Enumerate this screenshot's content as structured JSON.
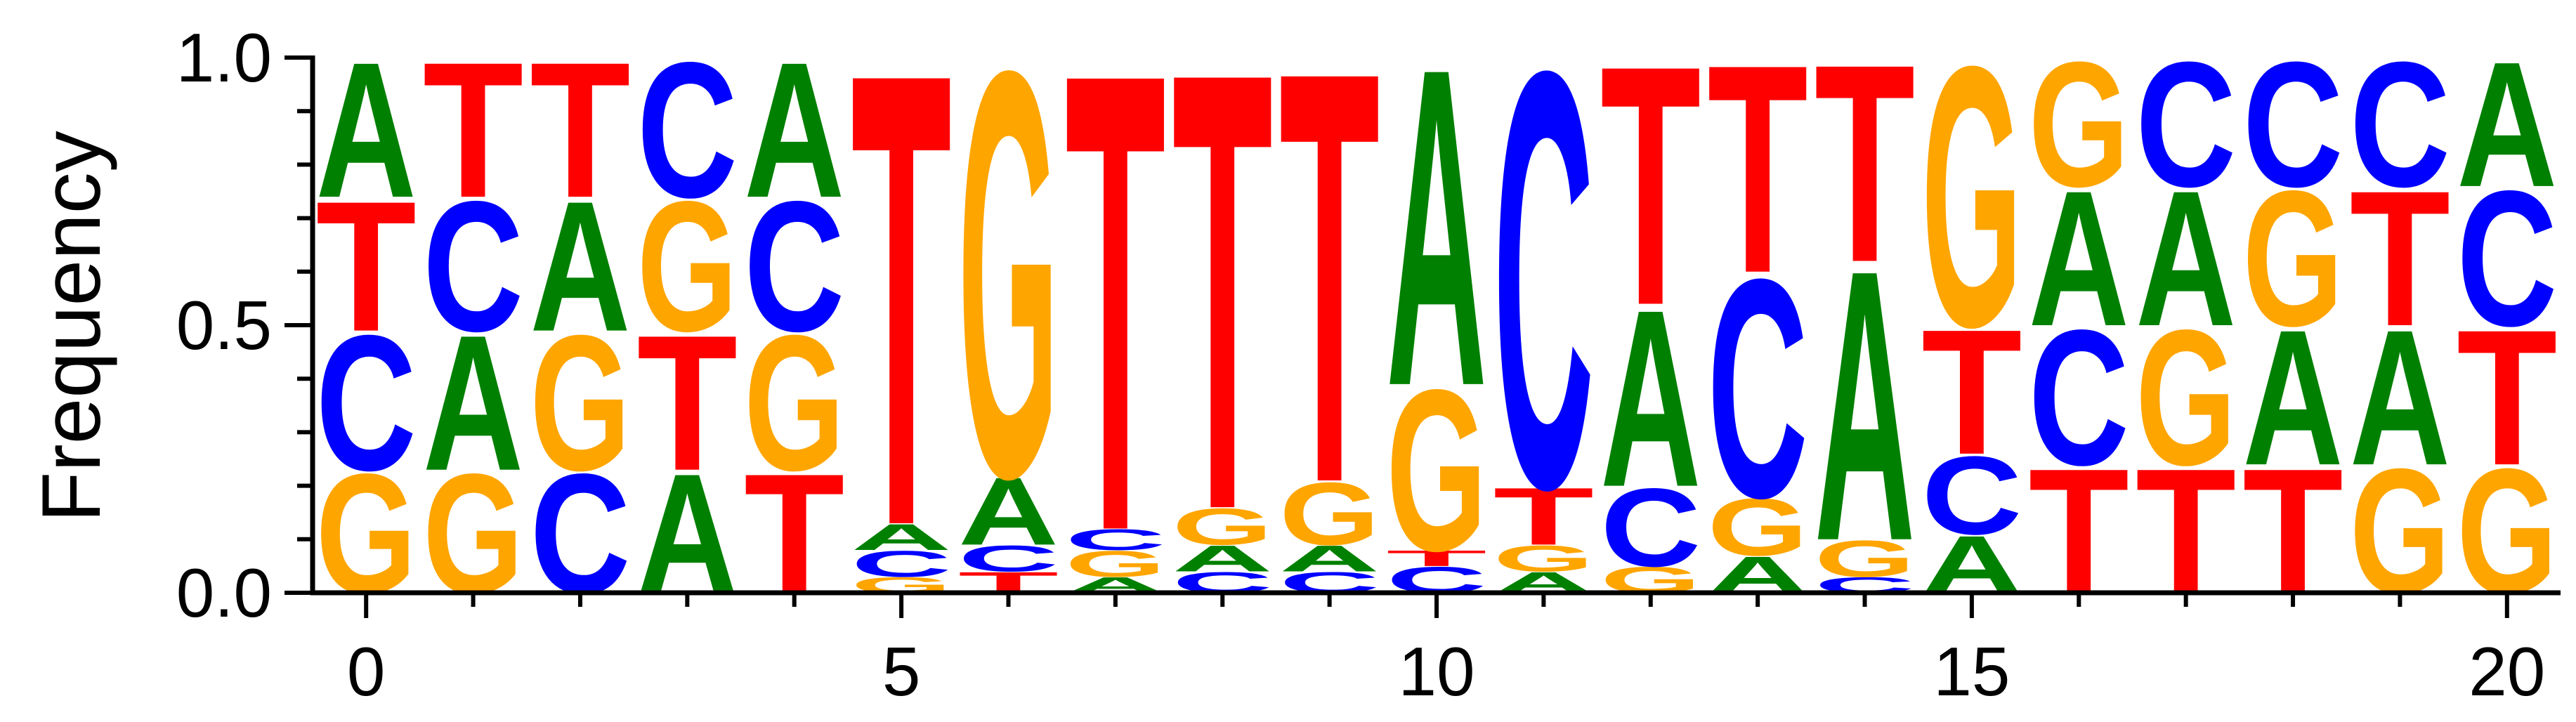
{
  "colors": {
    "A": "#008000",
    "C": "#0000ff",
    "G": "#ffa500",
    "T": "#ff0000"
  },
  "chart_data": {
    "type": "sequence-logo",
    "ylabel": "Frequency",
    "ylim": [
      0,
      1
    ],
    "xlim": [
      -0.5,
      20.5
    ],
    "yticks": [
      0.0,
      0.5,
      1.0
    ],
    "ytick_labels": [
      "0.0",
      "0.5",
      "1.0"
    ],
    "xticks": [
      0,
      5,
      10,
      15,
      20
    ],
    "xtick_labels": [
      "0",
      "5",
      "10",
      "15",
      "20"
    ],
    "positions": [
      [
        {
          "letter": "G",
          "p": 0.23
        },
        {
          "letter": "C",
          "p": 0.26
        },
        {
          "letter": "T",
          "p": 0.25
        },
        {
          "letter": "A",
          "p": 0.26
        }
      ],
      [
        {
          "letter": "G",
          "p": 0.23
        },
        {
          "letter": "A",
          "p": 0.26
        },
        {
          "letter": "C",
          "p": 0.25
        },
        {
          "letter": "T",
          "p": 0.26
        }
      ],
      [
        {
          "letter": "C",
          "p": 0.23
        },
        {
          "letter": "G",
          "p": 0.26
        },
        {
          "letter": "A",
          "p": 0.25
        },
        {
          "letter": "T",
          "p": 0.26
        }
      ],
      [
        {
          "letter": "A",
          "p": 0.23
        },
        {
          "letter": "T",
          "p": 0.26
        },
        {
          "letter": "G",
          "p": 0.25
        },
        {
          "letter": "C",
          "p": 0.26
        }
      ],
      [
        {
          "letter": "T",
          "p": 0.23
        },
        {
          "letter": "G",
          "p": 0.26
        },
        {
          "letter": "C",
          "p": 0.25
        },
        {
          "letter": "A",
          "p": 0.26
        }
      ],
      [
        {
          "letter": "G",
          "p": 0.03
        },
        {
          "letter": "C",
          "p": 0.05
        },
        {
          "letter": "A",
          "p": 0.05
        },
        {
          "letter": "T",
          "p": 0.87
        }
      ],
      [
        {
          "letter": "T",
          "p": 0.04
        },
        {
          "letter": "C",
          "p": 0.05
        },
        {
          "letter": "A",
          "p": 0.13
        },
        {
          "letter": "G",
          "p": 0.78
        }
      ],
      [
        {
          "letter": "A",
          "p": 0.03
        },
        {
          "letter": "G",
          "p": 0.05
        },
        {
          "letter": "C",
          "p": 0.04
        },
        {
          "letter": "T",
          "p": 0.88
        }
      ],
      [
        {
          "letter": "C",
          "p": 0.04
        },
        {
          "letter": "A",
          "p": 0.05
        },
        {
          "letter": "G",
          "p": 0.07
        },
        {
          "letter": "T",
          "p": 0.84
        }
      ],
      [
        {
          "letter": "C",
          "p": 0.04
        },
        {
          "letter": "A",
          "p": 0.05
        },
        {
          "letter": "G",
          "p": 0.12
        },
        {
          "letter": "T",
          "p": 0.79
        }
      ],
      [
        {
          "letter": "C",
          "p": 0.05
        },
        {
          "letter": "T",
          "p": 0.03
        },
        {
          "letter": "G",
          "p": 0.31
        },
        {
          "letter": "A",
          "p": 0.61
        }
      ],
      [
        {
          "letter": "A",
          "p": 0.04
        },
        {
          "letter": "G",
          "p": 0.05
        },
        {
          "letter": "T",
          "p": 0.11
        },
        {
          "letter": "C",
          "p": 0.8
        }
      ],
      [
        {
          "letter": "G",
          "p": 0.05
        },
        {
          "letter": "C",
          "p": 0.15
        },
        {
          "letter": "A",
          "p": 0.34
        },
        {
          "letter": "T",
          "p": 0.46
        }
      ],
      [
        {
          "letter": "A",
          "p": 0.07
        },
        {
          "letter": "G",
          "p": 0.11
        },
        {
          "letter": "C",
          "p": 0.42
        },
        {
          "letter": "T",
          "p": 0.4
        }
      ],
      [
        {
          "letter": "C",
          "p": 0.03
        },
        {
          "letter": "G",
          "p": 0.07
        },
        {
          "letter": "A",
          "p": 0.52
        },
        {
          "letter": "T",
          "p": 0.38
        }
      ],
      [
        {
          "letter": "A",
          "p": 0.11
        },
        {
          "letter": "C",
          "p": 0.15
        },
        {
          "letter": "T",
          "p": 0.24
        },
        {
          "letter": "G",
          "p": 0.5
        }
      ],
      [
        {
          "letter": "T",
          "p": 0.24
        },
        {
          "letter": "C",
          "p": 0.26
        },
        {
          "letter": "A",
          "p": 0.26
        },
        {
          "letter": "G",
          "p": 0.24
        }
      ],
      [
        {
          "letter": "T",
          "p": 0.24
        },
        {
          "letter": "G",
          "p": 0.26
        },
        {
          "letter": "A",
          "p": 0.26
        },
        {
          "letter": "C",
          "p": 0.24
        }
      ],
      [
        {
          "letter": "T",
          "p": 0.24
        },
        {
          "letter": "A",
          "p": 0.26
        },
        {
          "letter": "G",
          "p": 0.26
        },
        {
          "letter": "C",
          "p": 0.24
        }
      ],
      [
        {
          "letter": "G",
          "p": 0.24
        },
        {
          "letter": "A",
          "p": 0.26
        },
        {
          "letter": "T",
          "p": 0.26
        },
        {
          "letter": "C",
          "p": 0.24
        }
      ],
      [
        {
          "letter": "G",
          "p": 0.24
        },
        {
          "letter": "T",
          "p": 0.26
        },
        {
          "letter": "C",
          "p": 0.26
        },
        {
          "letter": "A",
          "p": 0.24
        }
      ]
    ]
  }
}
